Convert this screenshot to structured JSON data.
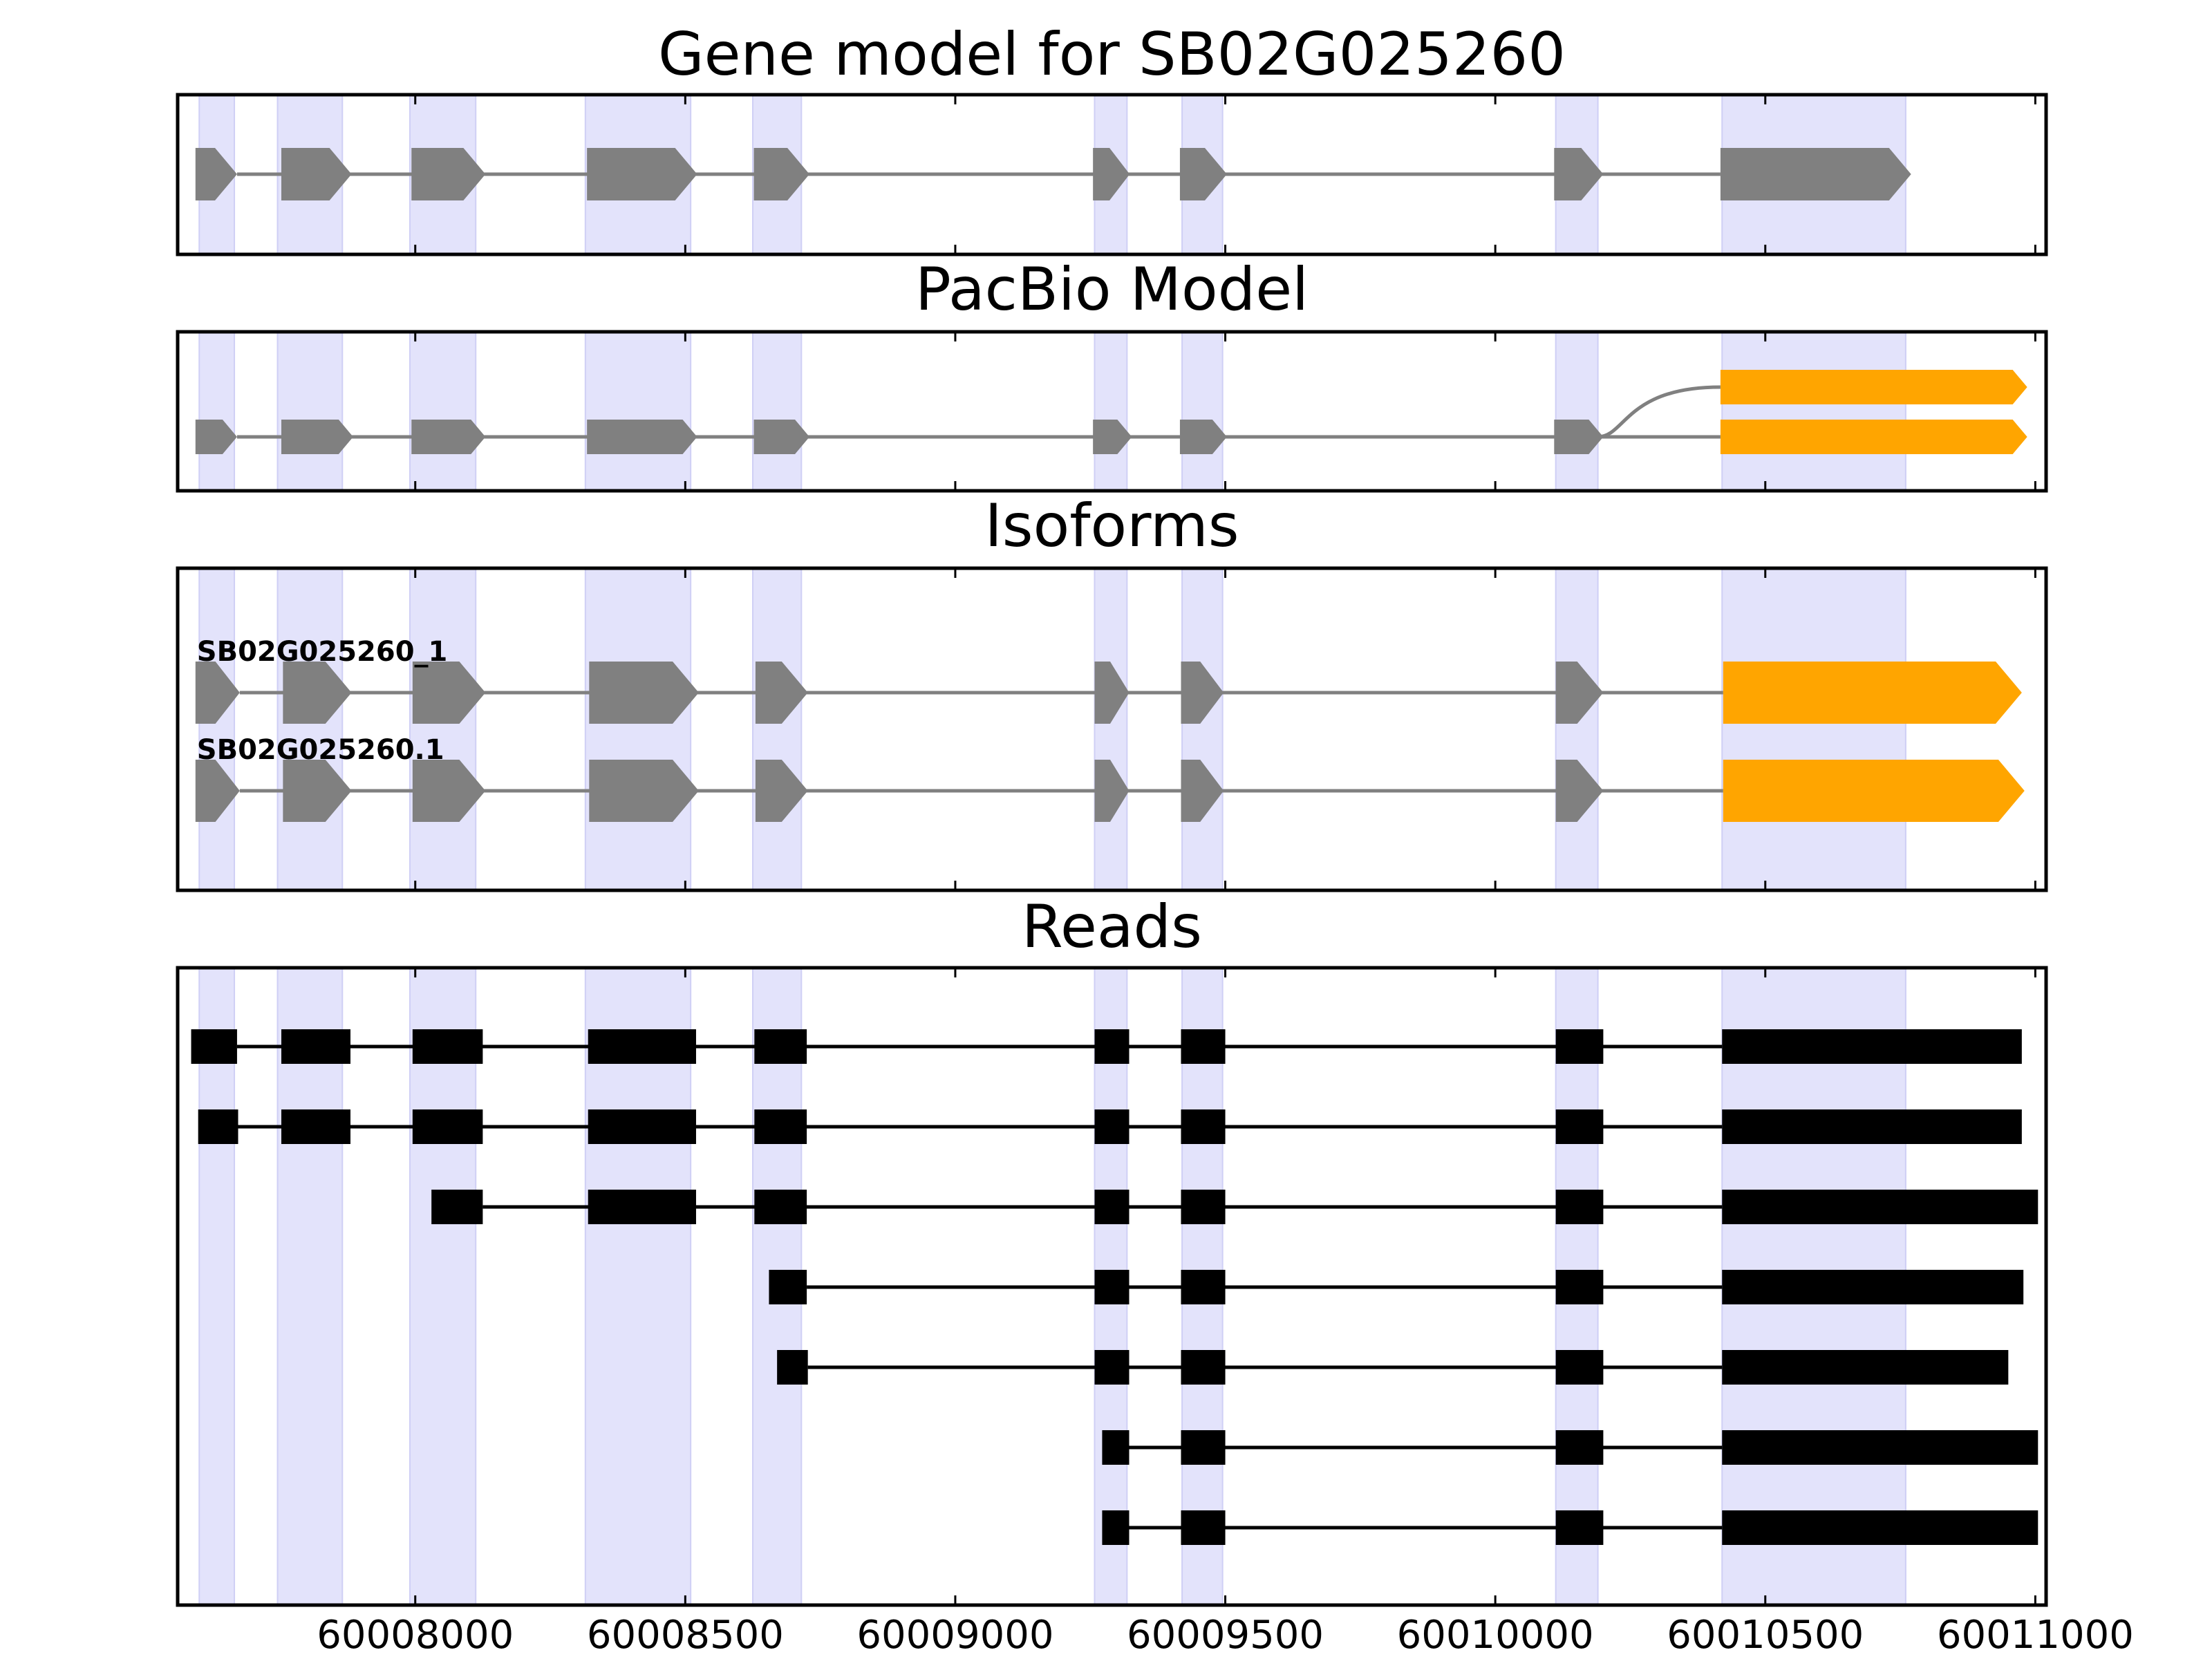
{
  "colors": {
    "exon_region": "#e3e3fb",
    "exon_region_edge": "#cfcff5",
    "model": "#808080",
    "pacbio_terminal": "#ffa500",
    "read": "#000000",
    "frame": "#000000"
  },
  "chart_data": {
    "type": "gene-structure",
    "x_range": [
      60007560,
      60011020
    ],
    "x_ticks": [
      60008000,
      60008500,
      60009000,
      60009500,
      60010000,
      60010500,
      60011000
    ],
    "x_tick_labels": [
      "60008000",
      "60008500",
      "60009000",
      "60009500",
      "60010000",
      "60010500",
      "60011000"
    ],
    "exon_regions": [
      [
        60007600,
        60007665
      ],
      [
        60007745,
        60007865
      ],
      [
        60007990,
        60008112
      ],
      [
        60008315,
        60008510
      ],
      [
        60008625,
        60008715
      ],
      [
        60009258,
        60009318
      ],
      [
        60009420,
        60009495
      ],
      [
        60010112,
        60010190
      ],
      [
        60010420,
        60010760
      ]
    ],
    "panels": [
      {
        "title": "Gene model for SB02G025260",
        "rows": [
          {
            "color": "model",
            "exons": [
              [
                60007593,
                60007670
              ],
              [
                60007752,
                60007882
              ],
              [
                60007993,
                60008130
              ],
              [
                60008318,
                60008522
              ],
              [
                60008627,
                60008730
              ],
              [
                60009255,
                60009323
              ],
              [
                60009416,
                60009503
              ],
              [
                60010109,
                60010200
              ],
              [
                60010417,
                60010770
              ]
            ]
          }
        ]
      },
      {
        "title": "PacBio Model",
        "rows": [
          {
            "color": "pacbio_terminal",
            "exons": [
              [
                60010417,
                60010985
              ]
            ],
            "joins_from": 60010190
          },
          {
            "color": "model",
            "terminal_color": "pacbio_terminal",
            "exons": [
              [
                60007593,
                60007670
              ],
              [
                60007752,
                60007885
              ],
              [
                60007993,
                60008130
              ],
              [
                60008318,
                60008522
              ],
              [
                60008627,
                60008730
              ],
              [
                60009255,
                60009327
              ],
              [
                60009416,
                60009503
              ],
              [
                60010109,
                60010200
              ],
              [
                60010417,
                60010985
              ]
            ]
          }
        ]
      },
      {
        "title": "Isoforms",
        "rows": [
          {
            "label": "SB02G025260_1",
            "color": "model",
            "terminal_color": "pacbio_terminal",
            "exons": [
              [
                60007593,
                60007675
              ],
              [
                60007755,
                60007882
              ],
              [
                60007995,
                60008130
              ],
              [
                60008322,
                60008525
              ],
              [
                60008630,
                60008727
              ],
              [
                60009258,
                60009322
              ],
              [
                60009418,
                60009497
              ],
              [
                60010112,
                60010200
              ],
              [
                60010422,
                60010975
              ]
            ]
          },
          {
            "label": "SB02G025260.1",
            "color": "model",
            "terminal_color": "pacbio_terminal",
            "exons": [
              [
                60007593,
                60007675
              ],
              [
                60007755,
                60007882
              ],
              [
                60007995,
                60008130
              ],
              [
                60008322,
                60008525
              ],
              [
                60008630,
                60008727
              ],
              [
                60009258,
                60009322
              ],
              [
                60009418,
                60009497
              ],
              [
                60010112,
                60010200
              ],
              [
                60010422,
                60010980
              ]
            ]
          }
        ]
      },
      {
        "title": "Reads",
        "rows": [
          {
            "exons": [
              [
                60007585,
                60007670
              ],
              [
                60007752,
                60007880
              ],
              [
                60007995,
                60008125
              ],
              [
                60008320,
                60008520
              ],
              [
                60008628,
                60008725
              ],
              [
                60009258,
                60009322
              ],
              [
                60009418,
                60009500
              ],
              [
                60010112,
                60010200
              ],
              [
                60010420,
                60010975
              ]
            ]
          },
          {
            "exons": [
              [
                60007598,
                60007672
              ],
              [
                60007752,
                60007880
              ],
              [
                60007995,
                60008125
              ],
              [
                60008320,
                60008520
              ],
              [
                60008628,
                60008725
              ],
              [
                60009258,
                60009322
              ],
              [
                60009418,
                60009500
              ],
              [
                60010112,
                60010200
              ],
              [
                60010420,
                60010975
              ]
            ]
          },
          {
            "exons": [
              [
                60008030,
                60008125
              ],
              [
                60008320,
                60008520
              ],
              [
                60008628,
                60008725
              ],
              [
                60009258,
                60009322
              ],
              [
                60009418,
                60009500
              ],
              [
                60010112,
                60010200
              ],
              [
                60010420,
                60011005
              ]
            ]
          },
          {
            "exons": [
              [
                60008655,
                60008725
              ],
              [
                60009258,
                60009322
              ],
              [
                60009418,
                60009500
              ],
              [
                60010112,
                60010200
              ],
              [
                60010420,
                60010978
              ]
            ]
          },
          {
            "exons": [
              [
                60008670,
                60008727
              ],
              [
                60009258,
                60009322
              ],
              [
                60009418,
                60009500
              ],
              [
                60010112,
                60010200
              ],
              [
                60010420,
                60010950
              ]
            ]
          },
          {
            "exons": [
              [
                60009272,
                60009322
              ],
              [
                60009418,
                60009500
              ],
              [
                60010112,
                60010200
              ],
              [
                60010420,
                60011005
              ]
            ]
          },
          {
            "exons": [
              [
                60009272,
                60009322
              ],
              [
                60009418,
                60009500
              ],
              [
                60010112,
                60010200
              ],
              [
                60010420,
                60011005
              ]
            ]
          }
        ]
      }
    ]
  }
}
